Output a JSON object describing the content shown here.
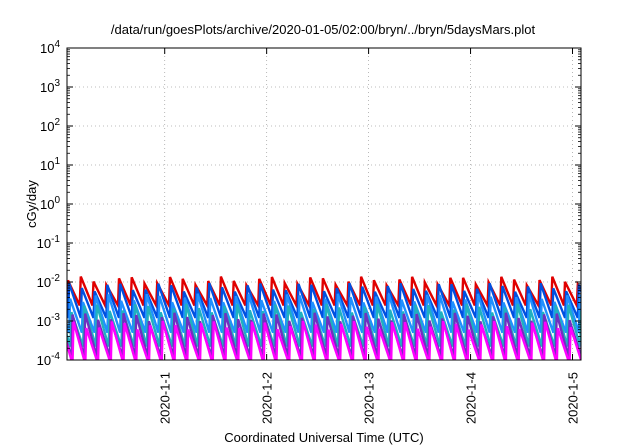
{
  "chart_data": {
    "type": "line",
    "title": "/data/run/goesPlots/archive/2020-01-05/02:00/bryn/../bryn/5daysMars.plot",
    "xlabel": "Coordinated Universal Time (UTC)",
    "ylabel": "cGy/day",
    "x_scale": "time",
    "y_scale": "log",
    "xlim": [
      "2019-12-31T01:00",
      "2020-01-05T02:00"
    ],
    "ylim": [
      0.0001,
      10000
    ],
    "x_ticks": [
      "2020-1-1",
      "2020-1-2",
      "2020-1-3",
      "2020-1-4",
      "2020-1-5"
    ],
    "y_ticks": [
      {
        "base": "10",
        "exp": "-4"
      },
      {
        "base": "10",
        "exp": "-3"
      },
      {
        "base": "10",
        "exp": "-2"
      },
      {
        "base": "10",
        "exp": "-1"
      },
      {
        "base": "10",
        "exp": "0"
      },
      {
        "base": "10",
        "exp": "1"
      },
      {
        "base": "10",
        "exp": "2"
      },
      {
        "base": "10",
        "exp": "3"
      },
      {
        "base": "10",
        "exp": "4"
      }
    ],
    "grid": true,
    "period_hours": 3,
    "series": [
      {
        "color": "#e00000",
        "peak": 0.011,
        "trough": 0.0025,
        "phase_hours": 0.0
      },
      {
        "color": "#0050e0",
        "peak": 0.0075,
        "trough": 0.0012,
        "phase_hours": 0.25
      },
      {
        "color": "#2090ff",
        "peak": 0.004,
        "trough": 0.0005,
        "phase_hours": 0.5
      },
      {
        "color": "#20b0c0",
        "peak": 0.0022,
        "trough": 0.00022,
        "phase_hours": 0.8
      },
      {
        "color": "#7030c0",
        "peak": 0.0013,
        "trough": 0.00012,
        "phase_hours": 1.05
      },
      {
        "color": "#ff00ff",
        "peak": 0.0008,
        "trough": 8e-05,
        "phase_hours": 1.3
      }
    ]
  }
}
